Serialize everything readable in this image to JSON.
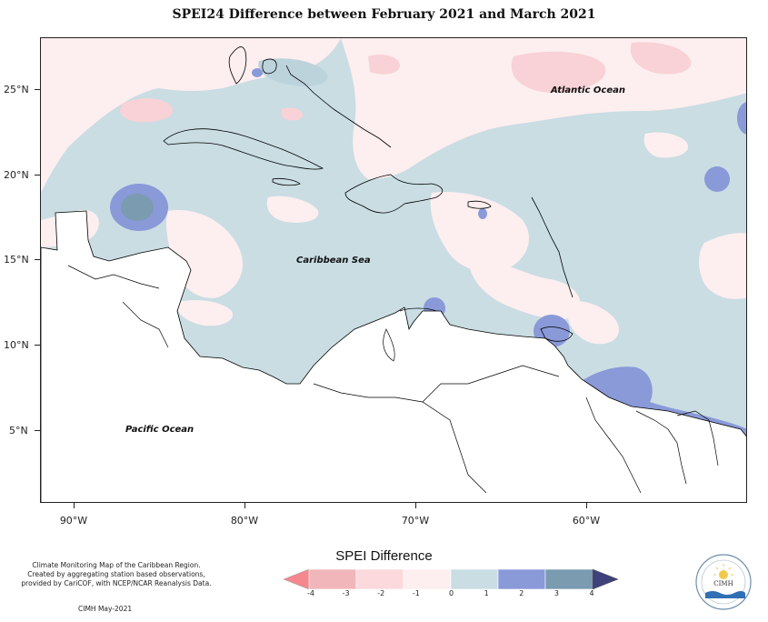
{
  "title": "SPEI24 Difference between February 2021 and March 2021",
  "map": {
    "lat_labels": [
      "25°N",
      "20°N",
      "15°N",
      "10°N",
      "5°N"
    ],
    "lon_labels": [
      "90°W",
      "80°W",
      "70°W",
      "60°W"
    ],
    "place_labels": {
      "atlantic": "Atlantic Ocean",
      "caribbean": "Caribbean Sea",
      "pacific": "Pacific Ocean"
    }
  },
  "legend": {
    "title": "SPEI Difference",
    "ticks": [
      "-4",
      "-3",
      "-2",
      "-1",
      "0",
      "1",
      "2",
      "3",
      "4"
    ],
    "colors": [
      "#f4888e",
      "#f1b6b9",
      "#fbd9dc",
      "#fdeeef",
      "#c9dde3",
      "#8a99d8",
      "#7a9bb0",
      "#5a628f"
    ]
  },
  "credits": {
    "line1": "Climate Monitoring Map of the Caribbean Region.",
    "line2": "Created by aggregating station based observations,",
    "line3": "provided by CariCOF, with NCEP/NCAR Reanalysis Data.",
    "date": "CIMH May-2021"
  },
  "logo": {
    "text": "CIMH"
  }
}
